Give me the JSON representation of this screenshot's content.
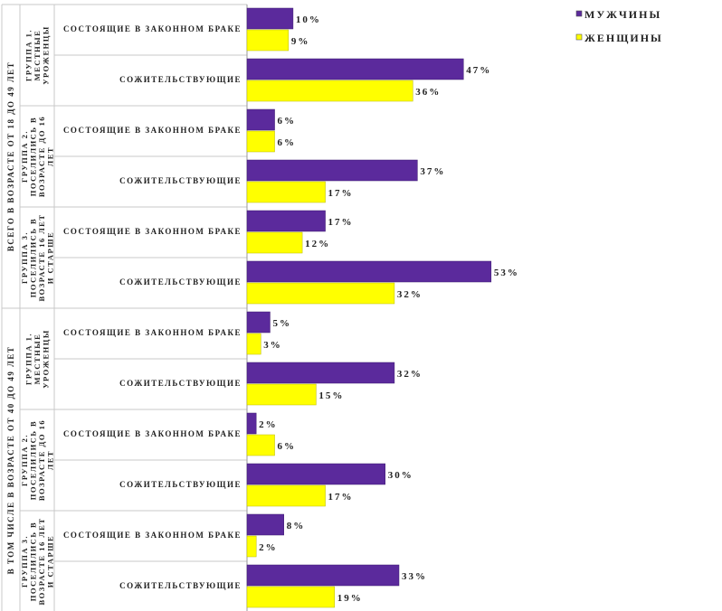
{
  "chart_data": {
    "type": "bar",
    "orientation": "horizontal",
    "colors": {
      "men": "#5b2a9c",
      "women": "#ffff00"
    },
    "legend": {
      "placement": "top-right",
      "items": [
        {
          "key": "men",
          "label": "МУЖЧИНЫ"
        },
        {
          "key": "women",
          "label": "ЖЕНЩИНЫ"
        }
      ]
    },
    "outer_groups": [
      {
        "label": "ВСЕГО В ВОЗРАСТЕ ОТ 18 ДО 49 ЛЕТ",
        "groups": [
          {
            "label_lines": [
              "ГРУППА 1.",
              "МЕСТНЫЕ",
              "УРОЖЕНЦЫ"
            ],
            "rows": [
              {
                "category": "СОСТОЯЩИЕ В ЗАКОННОМ БРАКЕ",
                "men": 10,
                "women": 9
              },
              {
                "category": "СОЖИТЕЛЬСТВУЮЩИЕ",
                "men": 47,
                "women": 36
              }
            ]
          },
          {
            "label_lines": [
              "ГРУППА 2.",
              "ПОСЕЛИЛИСЬ В",
              "ВОЗРАСТЕ ДО 16",
              "ЛЕТ"
            ],
            "rows": [
              {
                "category": "СОСТОЯЩИЕ В ЗАКОННОМ БРАКЕ",
                "men": 6,
                "women": 6
              },
              {
                "category": "СОЖИТЕЛЬСТВУЮЩИЕ",
                "men": 37,
                "women": 17
              }
            ]
          },
          {
            "label_lines": [
              "ГРУППА 3.",
              "ПОСЕЛИЛИСЬ В",
              "ВОЗРАСТЕ 16 ЛЕТ",
              "И СТАРШЕ"
            ],
            "rows": [
              {
                "category": "СОСТОЯЩИЕ В ЗАКОННОМ БРАКЕ",
                "men": 17,
                "women": 12
              },
              {
                "category": "СОЖИТЕЛЬСТВУЮЩИЕ",
                "men": 53,
                "women": 32
              }
            ]
          }
        ]
      },
      {
        "label": "В ТОМ ЧИСЛЕ В ВОЗРАСТЕ ОТ 40 ДО 49 ЛЕТ",
        "groups": [
          {
            "label_lines": [
              "ГРУППА 1.",
              "МЕСТНЫЕ",
              "УРОЖЕНЦЫ"
            ],
            "rows": [
              {
                "category": "СОСТОЯЩИЕ В ЗАКОННОМ БРАКЕ",
                "men": 5,
                "women": 3
              },
              {
                "category": "СОЖИТЕЛЬСТВУЮЩИЕ",
                "men": 32,
                "women": 15
              }
            ]
          },
          {
            "label_lines": [
              "ГРУППА 2.",
              "ПОСЕЛИЛИСЬ В",
              "ВОЗРАСТЕ ДО 16",
              "ЛЕТ"
            ],
            "rows": [
              {
                "category": "СОСТОЯЩИЕ В ЗАКОННОМ БРАКЕ",
                "men": 2,
                "women": 6
              },
              {
                "category": "СОЖИТЕЛЬСТВУЮЩИЕ",
                "men": 30,
                "women": 17
              }
            ]
          },
          {
            "label_lines": [
              "ГРУППА 3.",
              "ПОСЕЛИЛИСЬ В",
              "ВОЗРАСТЕ 16 ЛЕТ",
              "И СТАРШЕ"
            ],
            "rows": [
              {
                "category": "СОСТОЯЩИЕ В ЗАКОННОМ БРАКЕ",
                "men": 8,
                "women": 2
              },
              {
                "category": "СОЖИТЕЛЬСТВУЮЩИЕ",
                "men": 33,
                "women": 19
              }
            ]
          }
        ]
      }
    ],
    "value_suffix": "%",
    "xlim": [
      0,
      55
    ],
    "grid": false
  }
}
